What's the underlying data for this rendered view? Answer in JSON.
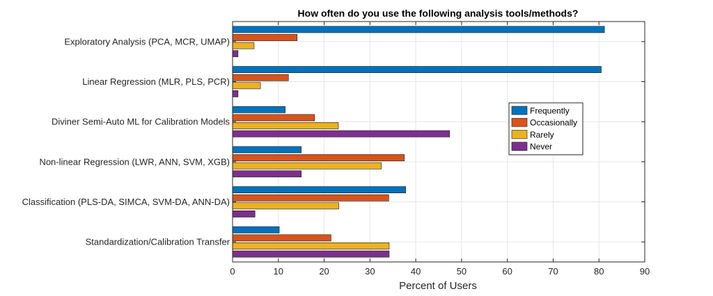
{
  "chart_data": {
    "type": "bar",
    "orientation": "horizontal",
    "title": "How often do you use the following analysis tools/methods?",
    "xlabel": "Percent of Users",
    "ylabel": "",
    "xlim": [
      0,
      90
    ],
    "xticks": [
      0,
      10,
      20,
      30,
      40,
      50,
      60,
      70,
      80,
      90
    ],
    "grid": true,
    "legend_position": "right",
    "categories": [
      "Exploratory Analysis (PCA, MCR, UMAP)",
      "Linear Regression (MLR, PLS, PCR)",
      "Diviner Semi-Auto ML for Calibration Models",
      "Non-linear Regression (LWR, ANN, SVM, XGB)",
      "Classification (PLS-DA, SIMCA, SVM-DA, ANN-DA)",
      "Standardization/Calibration Transfer"
    ],
    "series": [
      {
        "name": "Frequently",
        "color": "#0072BD",
        "values": [
          81.2,
          80.5,
          11.5,
          15.0,
          37.8,
          10.2
        ]
      },
      {
        "name": "Occasionally",
        "color": "#D95319",
        "values": [
          14.1,
          12.2,
          17.9,
          37.5,
          34.1,
          21.5
        ]
      },
      {
        "name": "Rarely",
        "color": "#EDB120",
        "values": [
          4.7,
          6.1,
          23.1,
          32.5,
          23.2,
          34.2
        ]
      },
      {
        "name": "Never",
        "color": "#7E2F8E",
        "values": [
          1.2,
          1.2,
          47.4,
          15.0,
          4.9,
          34.2
        ]
      }
    ]
  }
}
